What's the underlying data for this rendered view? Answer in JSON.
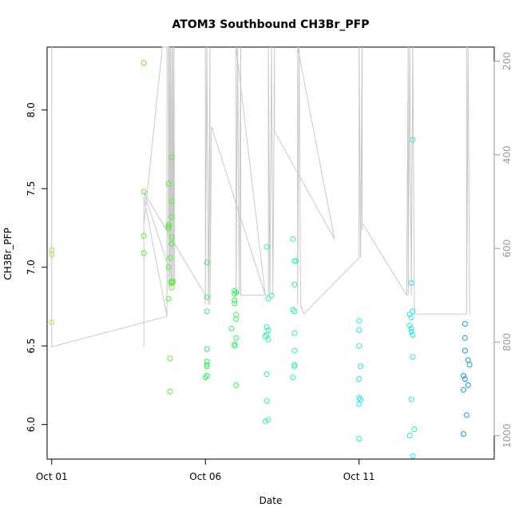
{
  "chart_data": {
    "type": "scatter",
    "title": "ATOM3 Southbound CH3Br_PFP",
    "xlabel": "Date",
    "ylabel": "CH3Br_PFP",
    "xlim": [
      -0.15,
      14.4
    ],
    "ylim": [
      5.78,
      8.4
    ],
    "y2lim": [
      1050,
      170
    ],
    "x_ticks": [
      {
        "value": 0,
        "label": "Oct 01"
      },
      {
        "value": 5,
        "label": "Oct 06"
      },
      {
        "value": 10,
        "label": "Oct 11"
      }
    ],
    "y_ticks": [
      {
        "value": 6.0,
        "label": "6.0"
      },
      {
        "value": 6.5,
        "label": "6.5"
      },
      {
        "value": 7.0,
        "label": "7.0"
      },
      {
        "value": 7.5,
        "label": "7.5"
      },
      {
        "value": 8.0,
        "label": "8.0"
      }
    ],
    "y2_ticks": [
      {
        "value": 200,
        "label": "200"
      },
      {
        "value": 400,
        "label": "400"
      },
      {
        "value": 600,
        "label": "600"
      },
      {
        "value": 800,
        "label": "800"
      },
      {
        "value": 1000,
        "label": "1000"
      }
    ],
    "y2_color": "#999999",
    "series": [
      {
        "color": "#99e63a",
        "points": [
          [
            0,
            7.11
          ],
          [
            0,
            7.08
          ],
          [
            0,
            6.65
          ]
        ]
      },
      {
        "color": "#58ec34",
        "points": [
          [
            3.0,
            8.3
          ],
          [
            3.0,
            7.48
          ],
          [
            3.0,
            7.2
          ],
          [
            3.0,
            7.09
          ],
          [
            3.8,
            7.53
          ],
          [
            3.8,
            7.27
          ],
          [
            3.8,
            7.25
          ],
          [
            3.8,
            7.0
          ],
          [
            3.8,
            6.8
          ],
          [
            3.85,
            7.06
          ],
          [
            3.9,
            7.7
          ],
          [
            3.9,
            7.42
          ],
          [
            3.9,
            7.32
          ],
          [
            3.9,
            7.19
          ],
          [
            3.9,
            7.15
          ],
          [
            3.9,
            6.91
          ],
          [
            3.9,
            6.9
          ],
          [
            3.9,
            6.87
          ],
          [
            3.85,
            6.42
          ],
          [
            3.85,
            6.21
          ],
          [
            3.8,
            7.26
          ],
          [
            3.95,
            6.91
          ]
        ]
      },
      {
        "color": "#2ef05a",
        "points": [
          [
            5.05,
            7.03
          ],
          [
            5.05,
            6.81
          ],
          [
            5.05,
            6.72
          ],
          [
            5.05,
            6.48
          ],
          [
            5.05,
            6.4
          ],
          [
            5.05,
            6.38
          ],
          [
            5.05,
            6.37
          ],
          [
            5.05,
            6.31
          ],
          [
            5.0,
            6.3
          ],
          [
            5.95,
            6.85
          ],
          [
            5.95,
            6.83
          ],
          [
            5.95,
            6.79
          ],
          [
            5.95,
            6.77
          ],
          [
            6.0,
            6.7
          ],
          [
            6.0,
            6.67
          ],
          [
            5.85,
            6.61
          ],
          [
            6.0,
            6.55
          ],
          [
            5.95,
            6.51
          ],
          [
            5.95,
            6.5
          ],
          [
            6.0,
            6.25
          ],
          [
            6.0,
            6.84
          ]
        ]
      },
      {
        "color": "#2ef0a0",
        "points": [
          [
            7.0,
            7.13
          ],
          [
            7.05,
            6.8
          ],
          [
            7.15,
            6.82
          ],
          [
            7.0,
            6.62
          ],
          [
            7.05,
            6.6
          ],
          [
            7.0,
            6.57
          ],
          [
            6.95,
            6.56
          ],
          [
            7.05,
            6.54
          ],
          [
            7.0,
            6.32
          ],
          [
            7.0,
            6.15
          ],
          [
            7.05,
            6.03
          ],
          [
            6.95,
            6.02
          ],
          [
            7.85,
            7.18
          ],
          [
            7.9,
            7.04
          ],
          [
            7.95,
            7.04
          ],
          [
            7.9,
            6.89
          ],
          [
            7.85,
            6.73
          ],
          [
            7.9,
            6.72
          ],
          [
            7.9,
            6.58
          ],
          [
            7.9,
            6.47
          ],
          [
            7.9,
            6.38
          ],
          [
            7.9,
            6.37
          ],
          [
            7.85,
            6.3
          ]
        ]
      },
      {
        "color": "#1ee8e0",
        "points": [
          [
            10.0,
            6.66
          ],
          [
            10.0,
            6.6
          ],
          [
            10.0,
            6.5
          ],
          [
            10.05,
            6.37
          ],
          [
            10.0,
            6.29
          ],
          [
            10.0,
            6.17
          ],
          [
            10.05,
            6.16
          ],
          [
            10.0,
            6.13
          ],
          [
            10.0,
            5.91
          ],
          [
            11.75,
            7.81
          ],
          [
            11.7,
            6.9
          ],
          [
            11.75,
            6.72
          ],
          [
            11.65,
            6.7
          ],
          [
            11.7,
            6.68
          ],
          [
            11.65,
            6.63
          ],
          [
            11.7,
            6.61
          ],
          [
            11.7,
            6.59
          ],
          [
            11.75,
            6.57
          ],
          [
            11.75,
            6.43
          ],
          [
            11.7,
            6.16
          ],
          [
            11.8,
            5.97
          ],
          [
            11.65,
            5.93
          ],
          [
            11.75,
            5.8
          ]
        ]
      },
      {
        "color": "#1a98e8",
        "points": [
          [
            13.45,
            6.64
          ],
          [
            13.45,
            6.55
          ],
          [
            13.45,
            6.47
          ],
          [
            13.55,
            6.41
          ],
          [
            13.6,
            6.38
          ],
          [
            13.4,
            6.31
          ],
          [
            13.45,
            6.29
          ],
          [
            13.55,
            6.25
          ],
          [
            13.4,
            6.22
          ],
          [
            13.5,
            6.06
          ],
          [
            13.4,
            5.94
          ]
        ]
      }
    ],
    "altitude_line": {
      "color": "#c8c8c8",
      "description_units": "y2",
      "points": [
        [
          0,
          810
        ],
        [
          0,
          170
        ],
        [
          0,
          810
        ],
        [
          3.75,
          745
        ],
        [
          3.75,
          170
        ],
        [
          3.75,
          745
        ],
        [
          3.0,
          490
        ],
        [
          3.0,
          810
        ],
        [
          3.0,
          550
        ],
        [
          3.6,
          170
        ],
        [
          3.8,
          170
        ],
        [
          3.8,
          680
        ],
        [
          3.82,
          170
        ],
        [
          3.84,
          680
        ],
        [
          3.86,
          170
        ],
        [
          3.88,
          680
        ],
        [
          3.9,
          170
        ],
        [
          3.92,
          680
        ],
        [
          3.94,
          170
        ],
        [
          3.96,
          680
        ],
        [
          3.98,
          170
        ],
        [
          4.0,
          680
        ],
        [
          3.0,
          480
        ],
        [
          5.0,
          700
        ],
        [
          5.0,
          170
        ],
        [
          5.0,
          720
        ],
        [
          5.05,
          170
        ],
        [
          5.1,
          720
        ],
        [
          5.15,
          170
        ],
        [
          5.15,
          720
        ],
        [
          5.2,
          340
        ],
        [
          6.95,
          700
        ],
        [
          6.0,
          170
        ],
        [
          6.0,
          700
        ],
        [
          6.05,
          170
        ],
        [
          6.1,
          700
        ],
        [
          6.15,
          170
        ],
        [
          6.15,
          700
        ],
        [
          7.05,
          700
        ],
        [
          7.05,
          170
        ],
        [
          7.1,
          700
        ],
        [
          7.15,
          170
        ],
        [
          7.2,
          700
        ],
        [
          7.25,
          170
        ],
        [
          7.25,
          350
        ],
        [
          9.2,
          580
        ],
        [
          8.0,
          170
        ],
        [
          8.0,
          720
        ],
        [
          8.05,
          170
        ],
        [
          8.1,
          720
        ],
        [
          8.2,
          740
        ],
        [
          10.0,
          620
        ],
        [
          10.0,
          170
        ],
        [
          10.05,
          620
        ],
        [
          10.1,
          170
        ],
        [
          10.1,
          560
        ],
        [
          10.1,
          545
        ],
        [
          11.55,
          700
        ],
        [
          11.6,
          170
        ],
        [
          11.6,
          700
        ],
        [
          11.65,
          170
        ],
        [
          11.7,
          700
        ],
        [
          11.75,
          170
        ],
        [
          11.8,
          700
        ],
        [
          11.8,
          740
        ],
        [
          13.5,
          740
        ],
        [
          13.5,
          170
        ],
        [
          13.5,
          740
        ],
        [
          13.55,
          170
        ],
        [
          13.6,
          740
        ]
      ]
    }
  }
}
